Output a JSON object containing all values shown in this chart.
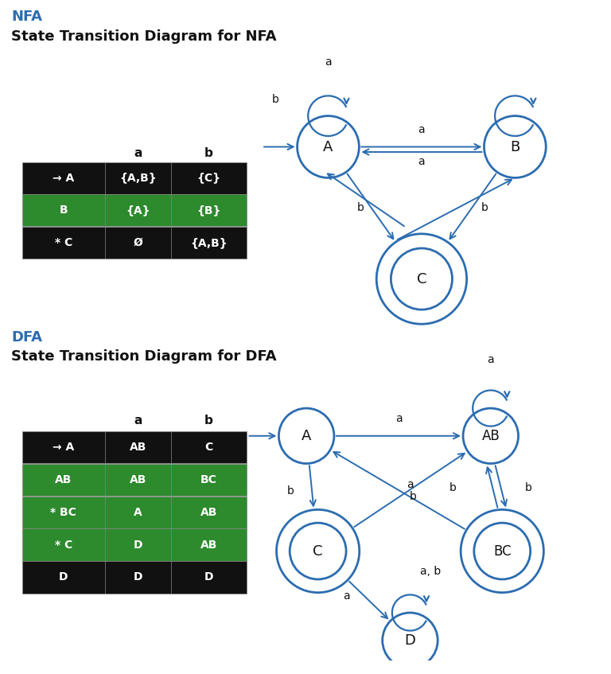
{
  "blue": "#2b6cb0",
  "green": "#2d8a2d",
  "black": "#111111",
  "white": "#ffffff",
  "gray": "#888888",
  "nfa_label": "NFA",
  "dfa_label": "DFA",
  "nfa_subtitle": "State Transition Diagram for NFA",
  "dfa_subtitle": "State Transition Diagram for DFA",
  "nfa_table_rows": [
    [
      "→ A",
      "{A,B}",
      "{C}",
      "black"
    ],
    [
      "B",
      "{A}",
      "{B}",
      "green"
    ],
    [
      "* C",
      "Ø",
      "{A,B}",
      "black"
    ]
  ],
  "dfa_table_rows": [
    [
      "→ A",
      "AB",
      "C",
      "black"
    ],
    [
      "AB",
      "AB",
      "BC",
      "green"
    ],
    [
      "* BC",
      "A",
      "AB",
      "green"
    ],
    [
      "* C",
      "D",
      "AB",
      "green"
    ],
    [
      "D",
      "D",
      "D",
      "black"
    ]
  ]
}
